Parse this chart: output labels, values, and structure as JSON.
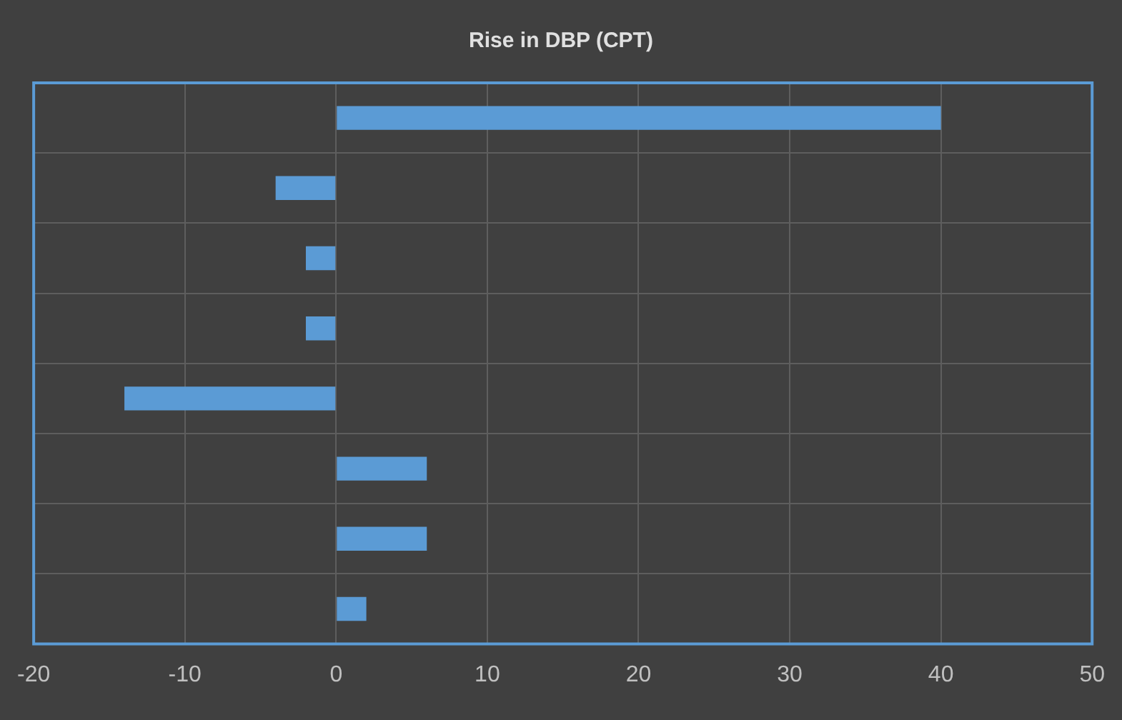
{
  "chart_data": {
    "type": "bar",
    "orientation": "horizontal",
    "title": "Rise in DBP (CPT)",
    "categories": [
      null,
      null,
      null,
      null,
      null,
      null,
      null,
      null
    ],
    "values": [
      40,
      -4,
      -2,
      -2,
      -14,
      6,
      6,
      2
    ],
    "color": "#5b9bd5",
    "xlim": [
      -20,
      50
    ],
    "xticks": [
      -20,
      -10,
      0,
      10,
      20,
      30,
      40,
      50
    ],
    "grid": true,
    "tick_labels": "x",
    "legend": false
  }
}
